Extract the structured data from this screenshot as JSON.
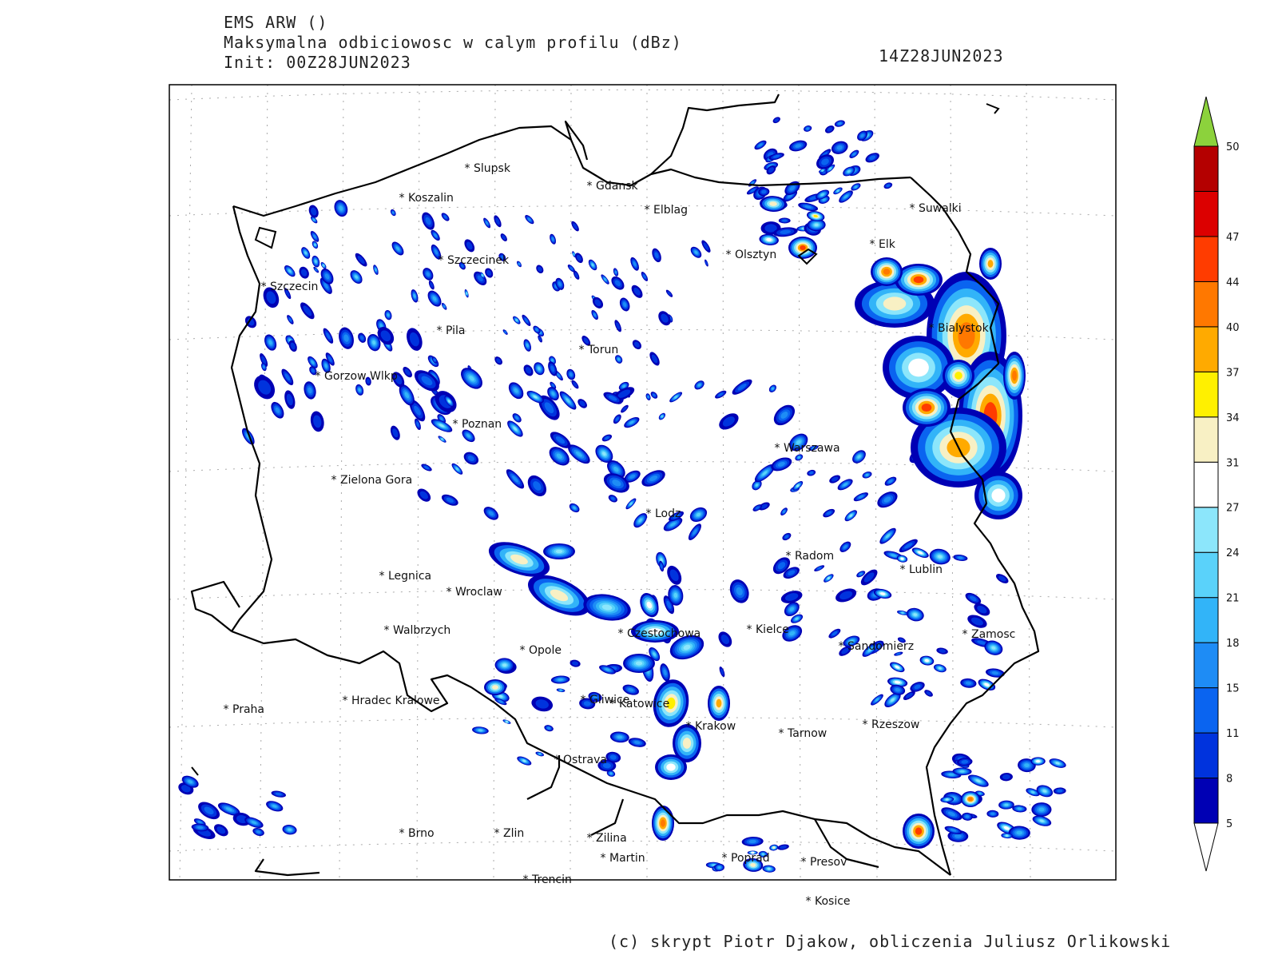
{
  "header": {
    "model": "EMS ARW ()",
    "field": "Maksymalna odbiciowosc w calym profilu (dBz)",
    "init": "Init: 00Z28JUN2023",
    "valid": "14Z28JUN2023"
  },
  "footer": "(c) skrypt Piotr Djakow, obliczenia Juliusz Orlikowski",
  "cities": [
    {
      "name": "Slupsk"
    },
    {
      "name": "Gdansk"
    },
    {
      "name": "Koszalin"
    },
    {
      "name": "Elblag"
    },
    {
      "name": "Suwalki"
    },
    {
      "name": "Elk"
    },
    {
      "name": "Olsztyn"
    },
    {
      "name": "Szczecinek"
    },
    {
      "name": "Szczecin"
    },
    {
      "name": "Pila"
    },
    {
      "name": "Bialystok"
    },
    {
      "name": "Torun"
    },
    {
      "name": "Gorzow Wlkp"
    },
    {
      "name": "Poznan"
    },
    {
      "name": "Warszawa"
    },
    {
      "name": "Zielona Gora"
    },
    {
      "name": "Lodz"
    },
    {
      "name": "Radom"
    },
    {
      "name": "Lublin"
    },
    {
      "name": "Legnica"
    },
    {
      "name": "Wroclaw"
    },
    {
      "name": "Walbrzych"
    },
    {
      "name": "Czestochowa"
    },
    {
      "name": "Kielce"
    },
    {
      "name": "Zamosc"
    },
    {
      "name": "Opole"
    },
    {
      "name": "Sandomierz"
    },
    {
      "name": "Praha"
    },
    {
      "name": "Hradec Kralowe"
    },
    {
      "name": "Gliwice"
    },
    {
      "name": "Katowice"
    },
    {
      "name": "Krakow"
    },
    {
      "name": "Tarnow"
    },
    {
      "name": "Rzeszow"
    },
    {
      "name": "Ostrava"
    },
    {
      "name": "Brno"
    },
    {
      "name": "Zlin"
    },
    {
      "name": "Zilina"
    },
    {
      "name": "Martin"
    },
    {
      "name": "Poprad"
    },
    {
      "name": "Presov"
    },
    {
      "name": "Trencin"
    },
    {
      "name": "Kosice"
    }
  ],
  "colorbar": {
    "levels": [
      "5",
      "8",
      "11",
      "15",
      "18",
      "21",
      "24",
      "27",
      "31",
      "34",
      "37",
      "40",
      "44",
      "47",
      "50"
    ],
    "colors": [
      "#0000b4",
      "#0033dd",
      "#0a64f0",
      "#1e8cf5",
      "#32b4f8",
      "#5ad2fa",
      "#8ce6fb",
      "#ffffff",
      "#f8f0c4",
      "#fff000",
      "#ffaa00",
      "#ff7800",
      "#ff3c00",
      "#dc0000",
      "#b40000"
    ],
    "low_color": "#ffffff",
    "high_color": "#8cd23c"
  },
  "colors": {
    "border": "#000000",
    "frame": "#000000",
    "grid": "#aaaaaa"
  }
}
